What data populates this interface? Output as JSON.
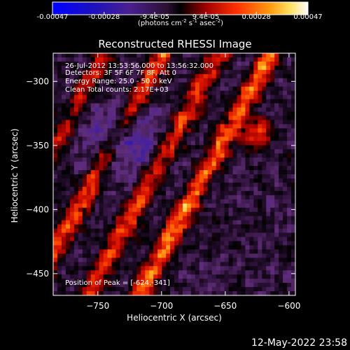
{
  "colorbar": {
    "tick_labels": [
      "-0.00047",
      "-0.00028",
      "-9.4e-05",
      "9.4e-05",
      "0.00028",
      "0.00047"
    ],
    "tick_values": [
      -0.00047,
      -0.00028,
      -9.4e-05,
      9.4e-05,
      0.00028,
      0.00047
    ],
    "range": [
      -0.00047,
      0.00047
    ],
    "units_main": "(photons cm",
    "units_sup1": "-2",
    "units_mid": " s",
    "units_sup2": "-1",
    "units_end": " asec",
    "units_sup3": "-2",
    "units_close": ")",
    "colors": [
      "#0000ff",
      "#2a1a8c",
      "#5a2a6e",
      "#000000",
      "#c00000",
      "#ff6000",
      "#ffb020",
      "#ffffff"
    ]
  },
  "chart_data": {
    "type": "heatmap",
    "title": "Reconstructed RHESSI Image",
    "xlabel": "Heliocentric X (arcsec)",
    "ylabel": "Heliocentric Y (arcsec)",
    "xlim": [
      -785,
      -595
    ],
    "ylim": [
      -467,
      -278
    ],
    "x_ticks": [
      -750,
      -700,
      -650,
      -600
    ],
    "x_tick_labels": [
      "−750",
      "−700",
      "−650",
      "−600"
    ],
    "y_ticks": [
      -300,
      -350,
      -400,
      -450
    ],
    "y_tick_labels": [
      "−300",
      "−350",
      "−400",
      "−450"
    ],
    "annotations": [
      "26-Jul-2012 13:53:56.000 to 13:56:32.000",
      "Detectors: 3F 5F 6F 7F 8F, Att 0",
      "Energy Range: 25.0 - 50.0 keV",
      "Clean     Total counts: 2.17E+03"
    ],
    "peak_label": "Position of Peak = [-624,-341]",
    "peak": {
      "x": -624,
      "y": -341
    },
    "image_description_bands": [
      {
        "label": "bright band",
        "center_x_at_y_-280": -745,
        "slope": -0.55,
        "strength": 0.55
      },
      {
        "label": "bright band",
        "center_x_at_y_-280": -700,
        "slope": -0.55,
        "strength": 0.75
      },
      {
        "label": "bright band",
        "center_x_at_y_-280": -655,
        "slope": -0.55,
        "strength": 0.7
      },
      {
        "label": "bright band",
        "center_x_at_y_-280": -615,
        "slope": -0.55,
        "strength": 0.9
      }
    ]
  },
  "timestamp": "12-May-2022 23:58"
}
